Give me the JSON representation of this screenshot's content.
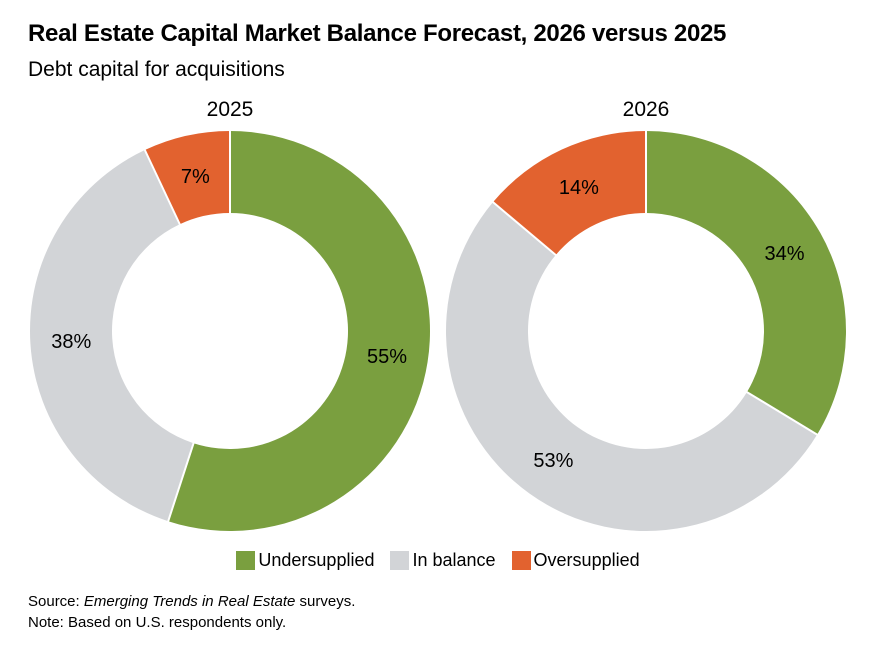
{
  "title": "Real Estate Capital Market Balance Forecast, 2026 versus 2025",
  "subtitle": "Debt capital for acquisitions",
  "colors": {
    "undersupplied": "#7A9F3F",
    "in_balance": "#D2D4D7",
    "oversupplied": "#E2622F",
    "background": "#FFFFFF",
    "text": "#000000",
    "slice_separator": "#FFFFFF"
  },
  "legend": {
    "items": [
      {
        "label": "Undersupplied",
        "color_key": "undersupplied"
      },
      {
        "label": "In balance",
        "color_key": "in_balance"
      },
      {
        "label": "Oversupplied",
        "color_key": "oversupplied"
      }
    ],
    "position": "bottom-center"
  },
  "chart_data": [
    {
      "type": "pie",
      "variant": "donut",
      "title": "2025",
      "categories": [
        "Undersupplied",
        "In balance",
        "Oversupplied"
      ],
      "values": [
        55,
        38,
        7
      ],
      "unit": "%",
      "value_labels": [
        "55%",
        "38%",
        "7%"
      ],
      "color_keys": [
        "undersupplied",
        "in_balance",
        "oversupplied"
      ],
      "start_angle": "top",
      "direction": "clockwise"
    },
    {
      "type": "pie",
      "variant": "donut",
      "title": "2026",
      "categories": [
        "Undersupplied",
        "In balance",
        "Oversupplied"
      ],
      "values": [
        34,
        53,
        14
      ],
      "unit": "%",
      "value_labels": [
        "34%",
        "53%",
        "14%"
      ],
      "color_keys": [
        "undersupplied",
        "in_balance",
        "oversupplied"
      ],
      "start_angle": "top",
      "direction": "clockwise"
    }
  ],
  "footer": {
    "source_prefix": "Source: ",
    "source_italic": "Emerging Trends in Real Estate",
    "source_suffix": " surveys.",
    "note": "Note: Based on U.S. respondents only."
  }
}
